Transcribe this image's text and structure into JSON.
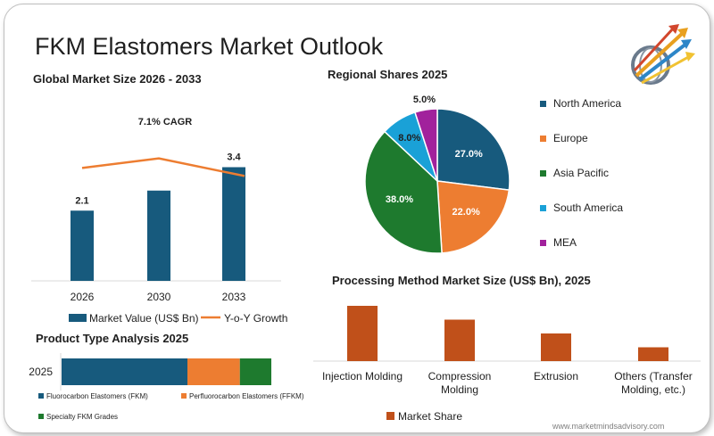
{
  "page": {
    "title": "FKM Elastomers Market Outlook",
    "watermark": "www.marketmindsadvisory.com"
  },
  "colors": {
    "navy": "#175a7d",
    "orange": "#ed7d31",
    "green": "#1e7a2e",
    "cyan": "#1aa1d7",
    "magenta": "#a1219c",
    "rust": "#c0501a"
  },
  "logo": {
    "icon": "arrows-globe-logo"
  },
  "chart_data": [
    {
      "id": "global",
      "type": "bar",
      "title": "Global Market Size 2026 - 2033",
      "categories": [
        "2026",
        "2030",
        "2033"
      ],
      "series": [
        {
          "name": "Market Value (US$ Bn)",
          "values": [
            2.1,
            2.7,
            3.4
          ],
          "labels": [
            "2.1",
            "",
            "3.4"
          ]
        },
        {
          "name": "Y-o-Y Growth",
          "type": "line",
          "values": [
            0.87,
            0.93,
            0.82
          ]
        }
      ],
      "annotation": "7.1% CAGR",
      "ylim": [
        0,
        4.4
      ]
    },
    {
      "id": "regional",
      "type": "pie",
      "title": "Regional Shares 2025",
      "labels": [
        "North America",
        "Europe",
        "Asia Pacific",
        "South America",
        "MEA"
      ],
      "values": [
        27.0,
        22.0,
        38.0,
        8.0,
        5.0
      ],
      "value_labels": [
        "27.0%",
        "22.0%",
        "38.0%",
        "8.0%",
        "5.0%"
      ],
      "legend": "right"
    },
    {
      "id": "processing",
      "type": "bar",
      "title": "Processing Method Market Size (US$ Bn), 2025",
      "categories": [
        "Injection Molding",
        "Compression Molding",
        "Extrusion",
        "Others (Transfer Molding, etc.)"
      ],
      "series": [
        {
          "name": "Market Share",
          "values": [
            1.0,
            0.75,
            0.5,
            0.25
          ]
        }
      ],
      "legend": "bottom"
    },
    {
      "id": "product",
      "type": "bar",
      "orientation": "horizontal-stacked",
      "title": "Product Type Analysis 2025",
      "categories": [
        "2025"
      ],
      "series": [
        {
          "name": "Fluorocarbon Elastomers (FKM)",
          "values": [
            60
          ]
        },
        {
          "name": "Perfluorocarbon Elastomers (FFKM)",
          "values": [
            25
          ]
        },
        {
          "name": "Specialty FKM Grades",
          "values": [
            15
          ]
        }
      ],
      "legend": "bottom"
    }
  ]
}
